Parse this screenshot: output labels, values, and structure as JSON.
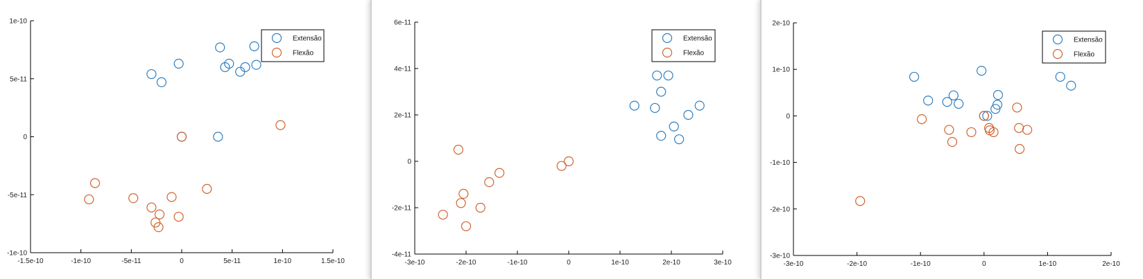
{
  "colors": {
    "series_1": "#2f7fbf",
    "series_2": "#d2632e",
    "axis": "#000000"
  },
  "chart_data": [
    {
      "type": "scatter",
      "xlim": [
        -1.5e-10,
        1.5e-10
      ],
      "ylim": [
        -1e-10,
        1e-10
      ],
      "x_ticks": [
        -1.5e-10,
        -1e-10,
        -5e-11,
        0,
        5e-11,
        1e-10,
        1.5e-10
      ],
      "x_tick_labels": [
        "-1.5e-10",
        "-1e-10",
        "-5e-11",
        "0",
        "5e-11",
        "1e-10",
        "1.5e-10"
      ],
      "y_ticks": [
        -1e-10,
        -5e-11,
        0,
        5e-11,
        1e-10
      ],
      "y_tick_labels": [
        "-1e-10",
        "-5e-11",
        "0",
        "5e-11",
        "1e-10"
      ],
      "legend": {
        "position": "top-right",
        "entries": [
          "Extensão",
          "Flexão"
        ]
      },
      "series": [
        {
          "name": "Extensão",
          "points": [
            [
              -3e-11,
              5.4e-11
            ],
            [
              -2e-11,
              4.7e-11
            ],
            [
              -3e-12,
              6.3e-11
            ],
            [
              3.8e-11,
              7.7e-11
            ],
            [
              4.3e-11,
              6e-11
            ],
            [
              4.7e-11,
              6.3e-11
            ],
            [
              5.8e-11,
              5.6e-11
            ],
            [
              6.3e-11,
              6e-11
            ],
            [
              7.2e-11,
              7.8e-11
            ],
            [
              7.4e-11,
              6.2e-11
            ],
            [
              3.6e-11,
              0
            ],
            [
              0,
              0
            ]
          ]
        },
        {
          "name": "Flexão",
          "points": [
            [
              -9.2e-11,
              -5.4e-11
            ],
            [
              -8.6e-11,
              -4e-11
            ],
            [
              -4.8e-11,
              -5.3e-11
            ],
            [
              -3e-11,
              -6.1e-11
            ],
            [
              -2.6e-11,
              -7.4e-11
            ],
            [
              -2.3e-11,
              -7.8e-11
            ],
            [
              -2.2e-11,
              -6.7e-11
            ],
            [
              -1e-11,
              -5.2e-11
            ],
            [
              -3e-12,
              -6.9e-11
            ],
            [
              2.5e-11,
              -4.5e-11
            ],
            [
              9.8e-11,
              1e-11
            ],
            [
              0,
              0
            ]
          ]
        }
      ]
    },
    {
      "type": "scatter",
      "xlim": [
        -3e-10,
        3e-10
      ],
      "ylim": [
        -4e-11,
        6e-11
      ],
      "x_ticks": [
        -3e-10,
        -2e-10,
        -1e-10,
        0,
        1e-10,
        2e-10,
        3e-10
      ],
      "x_tick_labels": [
        "-3e-10",
        "-2e-10",
        "-1e-10",
        "0",
        "1e-10",
        "2e-10",
        "3e-10"
      ],
      "y_ticks": [
        -4e-11,
        -2e-11,
        0,
        2e-11,
        4e-11,
        6e-11
      ],
      "y_tick_labels": [
        "-4e-11",
        "-2e-11",
        "0",
        "2e-11",
        "4e-11",
        "6e-11"
      ],
      "legend": {
        "position": "top-right",
        "entries": [
          "Extensão",
          "Flexão"
        ]
      },
      "series": [
        {
          "name": "Extensão",
          "points": [
            [
              1.28e-10,
              2.4e-11
            ],
            [
              1.68e-10,
              2.3e-11
            ],
            [
              1.72e-10,
              3.7e-11
            ],
            [
              1.8e-10,
              3e-11
            ],
            [
              1.8e-10,
              1.1e-11
            ],
            [
              1.94e-10,
              3.7e-11
            ],
            [
              2.05e-10,
              1.5e-11
            ],
            [
              2.15e-10,
              9.5e-12
            ],
            [
              2.33e-10,
              2e-11
            ],
            [
              2.55e-10,
              2.4e-11
            ]
          ]
        },
        {
          "name": "Flexão",
          "points": [
            [
              -2.45e-10,
              -2.3e-11
            ],
            [
              -2.15e-10,
              5e-12
            ],
            [
              -2.1e-10,
              -1.8e-11
            ],
            [
              -2.05e-10,
              -1.4e-11
            ],
            [
              -2e-10,
              -2.8e-11
            ],
            [
              -1.72e-10,
              -2e-11
            ],
            [
              -1.55e-10,
              -9e-12
            ],
            [
              -1.35e-10,
              -5e-12
            ],
            [
              -1.4e-11,
              -2e-12
            ],
            [
              0,
              0
            ]
          ]
        }
      ]
    },
    {
      "type": "scatter",
      "xlim": [
        -3e-10,
        2e-10
      ],
      "ylim": [
        -3e-10,
        2e-10
      ],
      "x_ticks": [
        -3e-10,
        -2e-10,
        -1e-10,
        0,
        1e-10,
        2e-10
      ],
      "x_tick_labels": [
        "-3e-10",
        "-2e-10",
        "-1e-10",
        "0",
        "1e-10",
        "2e-10"
      ],
      "y_ticks": [
        -3e-10,
        -2e-10,
        -1e-10,
        0,
        1e-10,
        2e-10
      ],
      "y_tick_labels": [
        "-3e-10",
        "-2e-10",
        "-1e-10",
        "0",
        "1e-10",
        "2e-10"
      ],
      "legend": {
        "position": "top-right",
        "entries": [
          "Extensão",
          "Flexão"
        ]
      },
      "series": [
        {
          "name": "Extensão",
          "points": [
            [
              -1.1e-10,
              8.4e-11
            ],
            [
              -8.8e-11,
              3.3e-11
            ],
            [
              -5.8e-11,
              3e-11
            ],
            [
              -4.8e-11,
              4.4e-11
            ],
            [
              -4e-11,
              2.6e-11
            ],
            [
              -4e-12,
              9.7e-11
            ],
            [
              5e-12,
              0
            ],
            [
              1.8e-11,
              1.5e-11
            ],
            [
              2.1e-11,
              2.4e-11
            ],
            [
              2.2e-11,
              4.5e-11
            ],
            [
              1.2e-10,
              8.4e-11
            ],
            [
              1.37e-10,
              6.5e-11
            ],
            [
              0,
              0
            ]
          ]
        },
        {
          "name": "Flexão",
          "points": [
            [
              -1.95e-10,
              -1.83e-10
            ],
            [
              -9.8e-11,
              -7e-12
            ],
            [
              -5.5e-11,
              -3e-11
            ],
            [
              -5e-11,
              -5.6e-11
            ],
            [
              -2e-11,
              -3.5e-11
            ],
            [
              0,
              0
            ],
            [
              8e-12,
              -2.6e-11
            ],
            [
              9e-12,
              -3.1e-11
            ],
            [
              1.5e-11,
              -3.5e-11
            ],
            [
              5.2e-11,
              1.8e-11
            ],
            [
              5.5e-11,
              -2.6e-11
            ],
            [
              5.6e-11,
              -7.1e-11
            ],
            [
              6.8e-11,
              -3e-11
            ]
          ]
        }
      ]
    }
  ]
}
